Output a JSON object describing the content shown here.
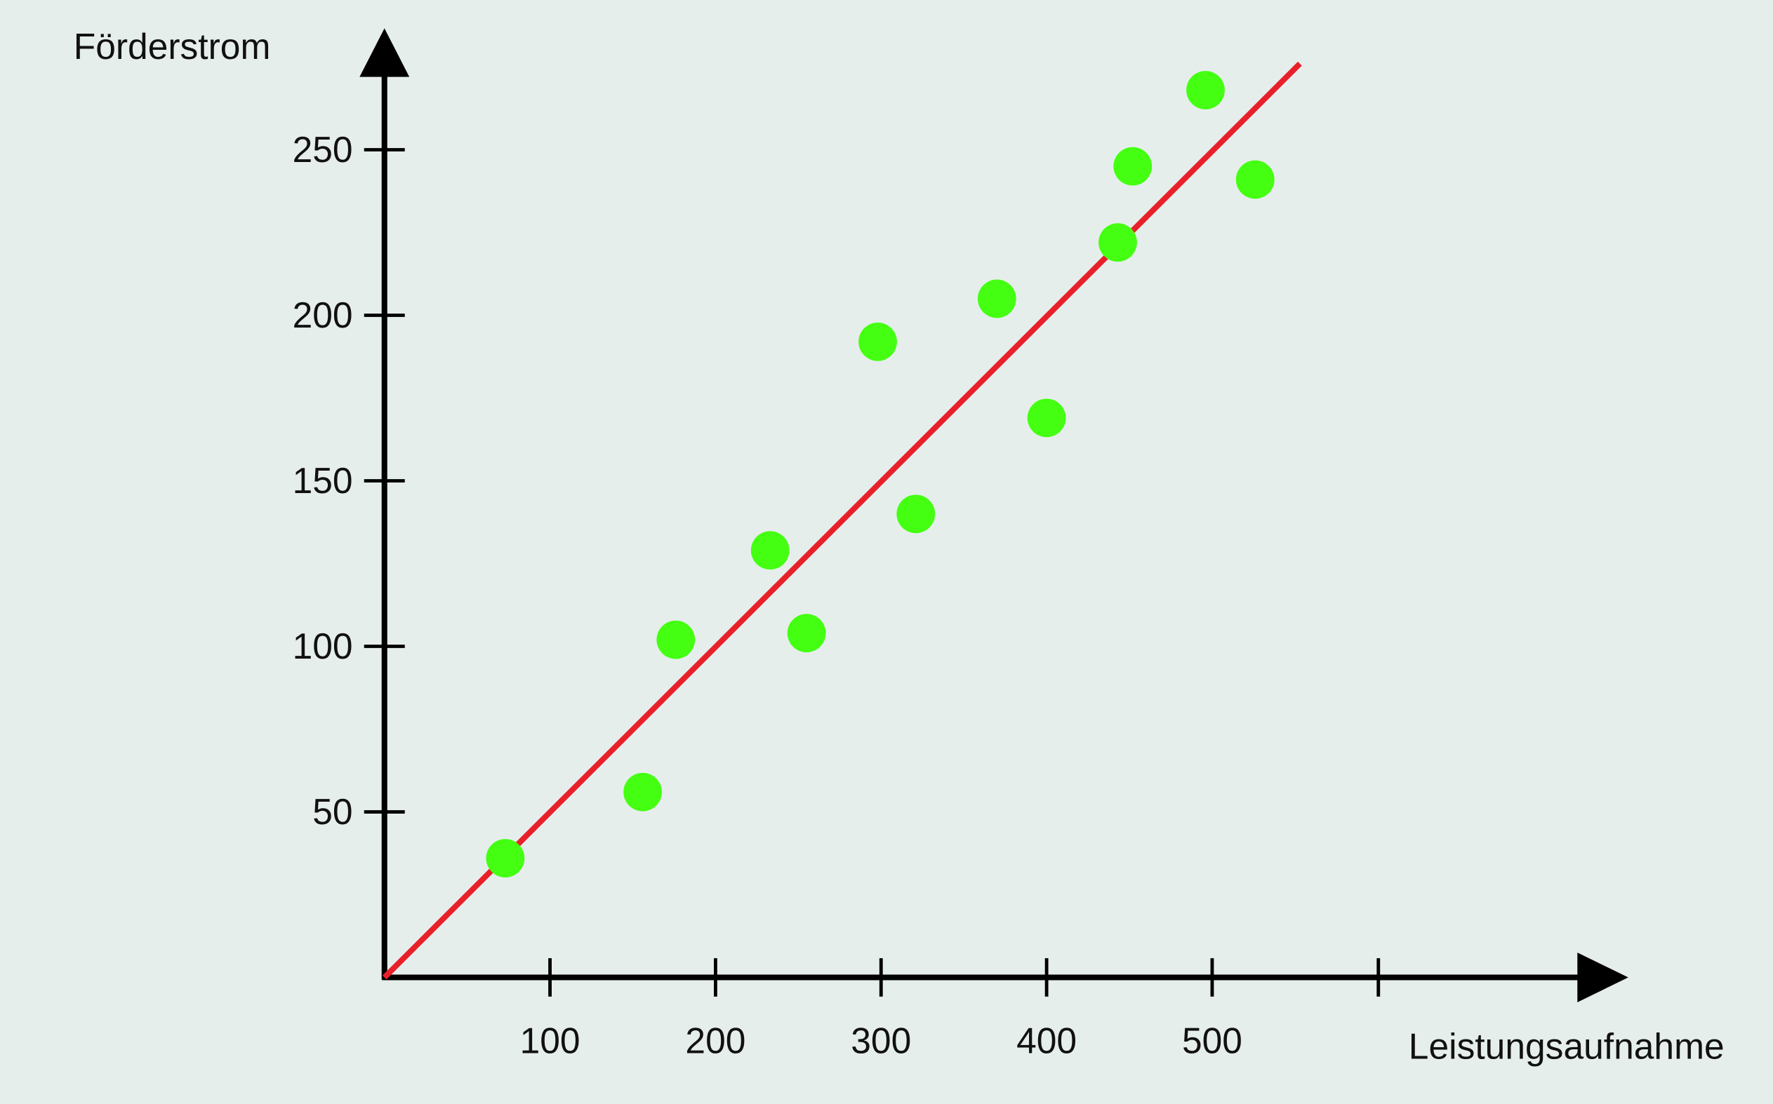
{
  "chart_data": {
    "type": "scatter",
    "x_label": "Leistungsaufnahme",
    "y_label": "Förderstrom",
    "xlim": [
      0,
      750
    ],
    "ylim": [
      0,
      287
    ],
    "xticks": [
      100,
      200,
      300,
      400,
      500
    ],
    "yticks": [
      50,
      100,
      150,
      200,
      250
    ],
    "series": [
      {
        "type": "scatter",
        "color": "#44ff11",
        "x": [
          73,
          156,
          176,
          233,
          255,
          298,
          321,
          370,
          400,
          443,
          452,
          496,
          526
        ],
        "values": [
          36,
          56,
          102,
          129,
          104,
          192,
          140,
          205,
          169,
          222,
          245,
          268,
          241
        ]
      },
      {
        "type": "line",
        "color": "#e8202a",
        "x": [
          0,
          553
        ],
        "values": [
          0,
          276
        ]
      }
    ]
  }
}
